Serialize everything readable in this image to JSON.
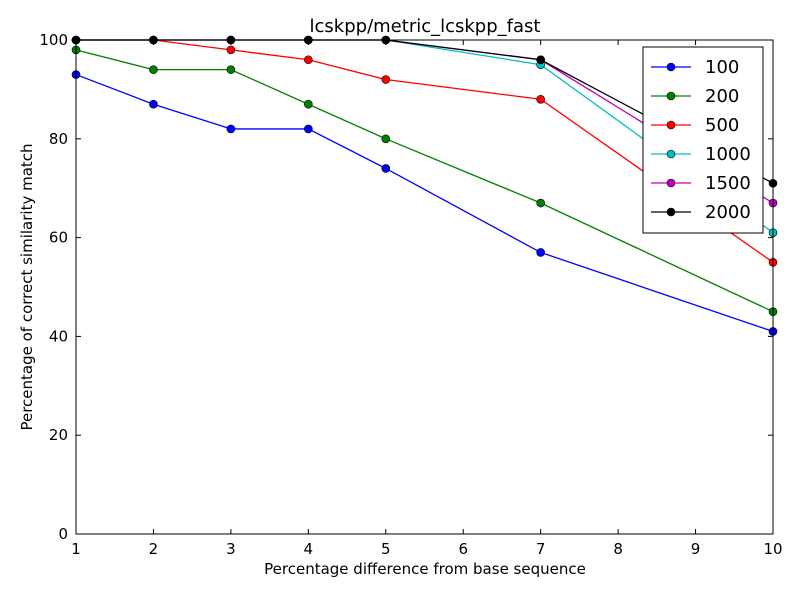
{
  "chart_data": {
    "type": "line",
    "title": "lcskpp/metric_lcskpp_fast",
    "xlabel": "Percentage difference from base sequence",
    "ylabel": "Percentage of correct similarity match",
    "xlim": [
      1,
      10
    ],
    "ylim": [
      0,
      100
    ],
    "xticks": [
      1,
      2,
      3,
      4,
      5,
      6,
      7,
      8,
      9,
      10
    ],
    "yticks": [
      0,
      20,
      40,
      60,
      80,
      100
    ],
    "grid": false,
    "legend_position": "top-right",
    "x": [
      1,
      2,
      3,
      4,
      5,
      7,
      10
    ],
    "series": [
      {
        "name": "100",
        "color": "#0000ff",
        "values": [
          93,
          87,
          82,
          82,
          74,
          57,
          41
        ]
      },
      {
        "name": "200",
        "color": "#008000",
        "values": [
          98,
          94,
          94,
          87,
          80,
          67,
          45
        ]
      },
      {
        "name": "500",
        "color": "#ff0000",
        "values": [
          100,
          100,
          98,
          96,
          92,
          88,
          55
        ]
      },
      {
        "name": "1000",
        "color": "#00bfbf",
        "values": [
          100,
          100,
          100,
          100,
          100,
          95,
          61
        ]
      },
      {
        "name": "1500",
        "color": "#bf00bf",
        "values": [
          100,
          100,
          100,
          100,
          100,
          96,
          67
        ]
      },
      {
        "name": "2000",
        "color": "#000000",
        "values": [
          100,
          100,
          100,
          100,
          100,
          96,
          71
        ]
      }
    ]
  }
}
